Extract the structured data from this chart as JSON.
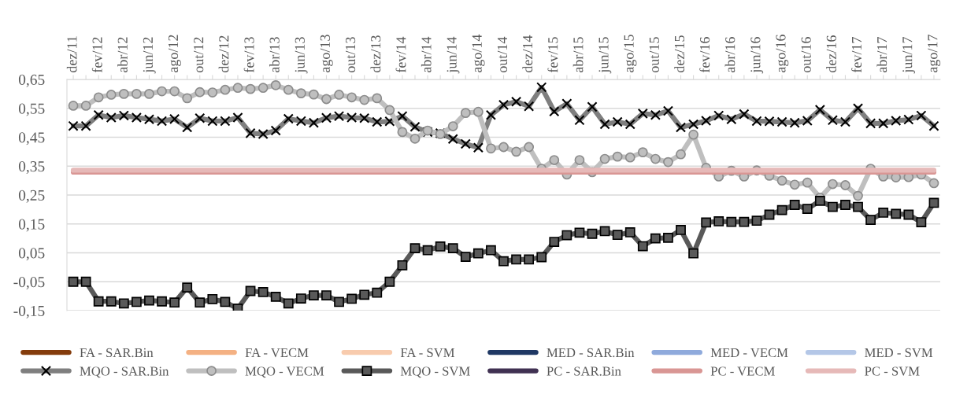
{
  "chart_data": {
    "type": "line",
    "categories": [
      "dez/11",
      null,
      "fev/12",
      null,
      "abr/12",
      null,
      "jun/12",
      null,
      "ago/12",
      null,
      "out/12",
      null,
      "dez/12",
      null,
      "fev/13",
      null,
      "abr/13",
      null,
      "jun/13",
      null,
      "ago/13",
      null,
      "out/13",
      null,
      "dez/13",
      null,
      "fev/14",
      null,
      "abr/14",
      null,
      "jun/14",
      null,
      "ago/14",
      null,
      "out/14",
      null,
      "dez/14",
      null,
      "fev/15",
      null,
      "abr/15",
      null,
      "jun/15",
      null,
      "ago/15",
      null,
      "out/15",
      null,
      "dez/15",
      null,
      "fev/16",
      null,
      "abr/16",
      null,
      "jun/16",
      null,
      "ago/16",
      null,
      "out/16",
      null,
      "dez/16",
      null,
      "fev/17",
      null,
      "abr/17",
      null,
      "jun/17",
      null,
      "ago/17"
    ],
    "ylim": [
      -0.15,
      0.65
    ],
    "yticks": [
      {
        "value": -0.15,
        "label": "-0,15"
      },
      {
        "value": -0.05,
        "label": "-0,05"
      },
      {
        "value": 0.05,
        "label": "0,05"
      },
      {
        "value": 0.15,
        "label": "0,15"
      },
      {
        "value": 0.25,
        "label": "0,25"
      },
      {
        "value": 0.35,
        "label": "0,35"
      },
      {
        "value": 0.45,
        "label": "0,45"
      },
      {
        "value": 0.55,
        "label": "0,55"
      },
      {
        "value": 0.65,
        "label": "0,65"
      }
    ],
    "grid": "y",
    "legend": "bottom",
    "line_style": "solid",
    "series": [
      {
        "name": "FA - SAR.Bin",
        "color": "#843c0c",
        "values": [
          null,
          null,
          null,
          null,
          null,
          null,
          null,
          null,
          null,
          null,
          null,
          null,
          null,
          null,
          null,
          null,
          null,
          null,
          null,
          null,
          null,
          null,
          null,
          null,
          null,
          null,
          null,
          null,
          null,
          null,
          null,
          null,
          null,
          null,
          null,
          null,
          null,
          null,
          null,
          null,
          null,
          null,
          null,
          null,
          null,
          null,
          null,
          null,
          null,
          null,
          null,
          null,
          null,
          null,
          null,
          null,
          null,
          null,
          null,
          null,
          null,
          null,
          null,
          null,
          null,
          null,
          null,
          null,
          null
        ]
      },
      {
        "name": "FA - VECM",
        "color": "#f4b183",
        "values": [
          null,
          null,
          null,
          null,
          null,
          null,
          null,
          null,
          null,
          null,
          null,
          null,
          null,
          null,
          null,
          null,
          null,
          null,
          null,
          null,
          null,
          null,
          null,
          null,
          null,
          null,
          null,
          null,
          null,
          null,
          null,
          null,
          null,
          null,
          null,
          null,
          null,
          null,
          null,
          null,
          null,
          null,
          null,
          null,
          null,
          null,
          null,
          null,
          null,
          null,
          null,
          null,
          null,
          null,
          null,
          null,
          null,
          null,
          null,
          null,
          null,
          null,
          null,
          null,
          null,
          null,
          null,
          null,
          null
        ]
      },
      {
        "name": "FA - SVM",
        "color": "#f8cbad",
        "values": [
          null,
          null,
          null,
          null,
          null,
          null,
          null,
          null,
          null,
          null,
          null,
          null,
          null,
          null,
          null,
          null,
          null,
          null,
          null,
          null,
          null,
          null,
          null,
          null,
          null,
          null,
          null,
          null,
          null,
          null,
          null,
          null,
          null,
          null,
          null,
          null,
          null,
          null,
          null,
          null,
          null,
          null,
          null,
          null,
          null,
          null,
          null,
          null,
          null,
          null,
          null,
          null,
          null,
          null,
          null,
          null,
          null,
          null,
          null,
          null,
          null,
          null,
          null,
          null,
          null,
          null,
          null,
          null,
          null
        ]
      },
      {
        "name": "MED - SAR.Bin",
        "color": "#1f3864",
        "values": [
          null,
          null,
          null,
          null,
          null,
          null,
          null,
          null,
          null,
          null,
          null,
          null,
          null,
          null,
          null,
          null,
          null,
          null,
          null,
          null,
          null,
          null,
          null,
          null,
          null,
          null,
          null,
          null,
          null,
          null,
          null,
          null,
          null,
          null,
          null,
          null,
          null,
          null,
          null,
          null,
          null,
          null,
          null,
          null,
          null,
          null,
          null,
          null,
          null,
          null,
          null,
          null,
          null,
          null,
          null,
          null,
          null,
          null,
          null,
          null,
          null,
          null,
          null,
          null,
          null,
          null,
          null,
          null,
          null
        ]
      },
      {
        "name": "MED - VECM",
        "color": "#8faadc",
        "values": [
          null,
          null,
          null,
          null,
          null,
          null,
          null,
          null,
          null,
          null,
          null,
          null,
          null,
          null,
          null,
          null,
          null,
          null,
          null,
          null,
          null,
          null,
          null,
          null,
          null,
          null,
          null,
          null,
          null,
          null,
          null,
          null,
          null,
          null,
          null,
          null,
          null,
          null,
          null,
          null,
          null,
          null,
          null,
          null,
          null,
          null,
          null,
          null,
          null,
          null,
          null,
          null,
          null,
          null,
          null,
          null,
          null,
          null,
          null,
          null,
          null,
          null,
          null,
          null,
          null,
          null,
          null,
          null,
          null
        ]
      },
      {
        "name": "MED - SVM",
        "color": "#b4c7e7",
        "values": [
          null,
          null,
          null,
          null,
          null,
          null,
          null,
          null,
          null,
          null,
          null,
          null,
          null,
          null,
          null,
          null,
          null,
          null,
          null,
          null,
          null,
          null,
          null,
          null,
          null,
          null,
          null,
          null,
          null,
          null,
          null,
          null,
          null,
          null,
          null,
          null,
          null,
          null,
          null,
          null,
          null,
          null,
          null,
          null,
          null,
          null,
          null,
          null,
          null,
          null,
          null,
          null,
          null,
          null,
          null,
          null,
          null,
          null,
          null,
          null,
          null,
          null,
          null,
          null,
          null,
          null,
          null,
          null,
          null
        ]
      },
      {
        "name": "MQO - SAR.Bin",
        "color": "#7f7f7f",
        "marker": "cross",
        "values": [
          0.489,
          0.489,
          0.527,
          0.518,
          0.525,
          0.518,
          0.512,
          0.506,
          0.513,
          0.484,
          0.516,
          0.506,
          0.506,
          0.518,
          0.464,
          0.461,
          0.473,
          0.514,
          0.506,
          0.5,
          0.517,
          0.523,
          0.518,
          0.516,
          0.503,
          0.505,
          0.523,
          0.486,
          0.468,
          0.464,
          0.444,
          0.427,
          0.414,
          0.527,
          0.562,
          0.573,
          0.557,
          0.623,
          0.539,
          0.566,
          0.509,
          0.555,
          0.495,
          0.503,
          0.495,
          0.532,
          0.527,
          0.541,
          0.484,
          0.495,
          0.507,
          0.525,
          0.512,
          0.53,
          0.506,
          0.505,
          0.503,
          0.5,
          0.507,
          0.545,
          0.509,
          0.503,
          0.55,
          0.498,
          0.498,
          0.507,
          0.511,
          0.525,
          0.489
        ]
      },
      {
        "name": "MQO - VECM",
        "color": "#bfbfbf",
        "marker": "circle",
        "values": [
          0.559,
          0.559,
          0.588,
          0.597,
          0.6,
          0.6,
          0.6,
          0.609,
          0.609,
          0.585,
          0.606,
          0.605,
          0.614,
          0.621,
          0.617,
          0.621,
          0.63,
          0.614,
          0.602,
          0.598,
          0.582,
          0.597,
          0.588,
          0.579,
          0.585,
          0.544,
          0.468,
          0.445,
          0.473,
          0.461,
          0.488,
          0.534,
          0.538,
          0.411,
          0.416,
          0.4,
          0.416,
          0.341,
          0.371,
          0.321,
          0.371,
          0.329,
          0.375,
          0.383,
          0.38,
          0.398,
          0.375,
          0.364,
          0.391,
          0.459,
          0.344,
          0.314,
          0.334,
          0.314,
          0.335,
          0.317,
          0.3,
          0.286,
          0.293,
          0.241,
          0.288,
          0.284,
          0.247,
          0.341,
          0.314,
          0.311,
          0.312,
          0.321,
          0.291
        ]
      },
      {
        "name": "MQO - SVM",
        "color": "#595959",
        "marker": "square",
        "values": [
          -0.05,
          -0.05,
          -0.118,
          -0.118,
          -0.125,
          -0.12,
          -0.115,
          -0.118,
          -0.122,
          -0.07,
          -0.122,
          -0.11,
          -0.12,
          -0.143,
          -0.082,
          -0.086,
          -0.102,
          -0.125,
          -0.108,
          -0.097,
          -0.097,
          -0.12,
          -0.109,
          -0.095,
          -0.088,
          -0.05,
          0.007,
          0.066,
          0.059,
          0.072,
          0.066,
          0.036,
          0.048,
          0.059,
          0.021,
          0.027,
          0.027,
          0.035,
          0.088,
          0.111,
          0.12,
          0.116,
          0.125,
          0.112,
          0.121,
          0.073,
          0.1,
          0.102,
          0.129,
          0.048,
          0.155,
          0.159,
          0.157,
          0.157,
          0.161,
          0.182,
          0.198,
          0.216,
          0.202,
          0.23,
          0.209,
          0.216,
          0.209,
          0.164,
          0.189,
          0.185,
          0.182,
          0.156,
          0.223
        ]
      },
      {
        "name": "PC - SAR.Bin",
        "color": "#403152",
        "values": [
          null,
          null,
          null,
          null,
          null,
          null,
          null,
          null,
          null,
          null,
          null,
          null,
          null,
          null,
          null,
          null,
          null,
          null,
          null,
          null,
          null,
          null,
          null,
          null,
          null,
          null,
          null,
          null,
          null,
          null,
          null,
          null,
          null,
          null,
          null,
          null,
          null,
          null,
          null,
          null,
          null,
          null,
          null,
          null,
          null,
          null,
          null,
          null,
          null,
          null,
          null,
          null,
          null,
          null,
          null,
          null,
          null,
          null,
          null,
          null,
          null,
          null,
          null,
          null,
          null,
          null,
          null,
          null,
          null
        ]
      },
      {
        "name": "PC - VECM",
        "color": "#d99694",
        "values": [
          0.329,
          0.329,
          0.329,
          0.329,
          0.329,
          0.329,
          0.329,
          0.329,
          0.329,
          0.329,
          0.329,
          0.329,
          0.329,
          0.329,
          0.329,
          0.329,
          0.329,
          0.329,
          0.329,
          0.329,
          0.329,
          0.329,
          0.329,
          0.329,
          0.329,
          0.329,
          0.329,
          0.329,
          0.329,
          0.329,
          0.329,
          0.329,
          0.329,
          0.329,
          0.329,
          0.329,
          0.329,
          0.329,
          0.329,
          0.329,
          0.329,
          0.329,
          0.329,
          0.329,
          0.329,
          0.329,
          0.329,
          0.329,
          0.329,
          0.329,
          0.329,
          0.329,
          0.329,
          0.329,
          0.329,
          0.329,
          0.329,
          0.329,
          0.329,
          0.329,
          0.329,
          0.329,
          0.329,
          0.329,
          0.329,
          0.329,
          0.329,
          0.329,
          0.329
        ]
      },
      {
        "name": "PC - SVM",
        "color": "#e6b9b8",
        "values": [
          0.336,
          0.336,
          0.336,
          0.336,
          0.336,
          0.336,
          0.336,
          0.336,
          0.336,
          0.336,
          0.336,
          0.336,
          0.336,
          0.336,
          0.336,
          0.336,
          0.336,
          0.336,
          0.336,
          0.336,
          0.336,
          0.336,
          0.336,
          0.336,
          0.336,
          0.336,
          0.336,
          0.336,
          0.336,
          0.336,
          0.336,
          0.336,
          0.336,
          0.336,
          0.336,
          0.336,
          0.336,
          0.336,
          0.336,
          0.336,
          0.336,
          0.336,
          0.336,
          0.336,
          0.336,
          0.336,
          0.336,
          0.336,
          0.336,
          0.336,
          0.336,
          0.336,
          0.336,
          0.336,
          0.336,
          0.336,
          0.336,
          0.336,
          0.336,
          0.336,
          0.336,
          0.336,
          0.336,
          0.336,
          0.336,
          0.336,
          0.336,
          0.336,
          0.336
        ]
      }
    ]
  }
}
